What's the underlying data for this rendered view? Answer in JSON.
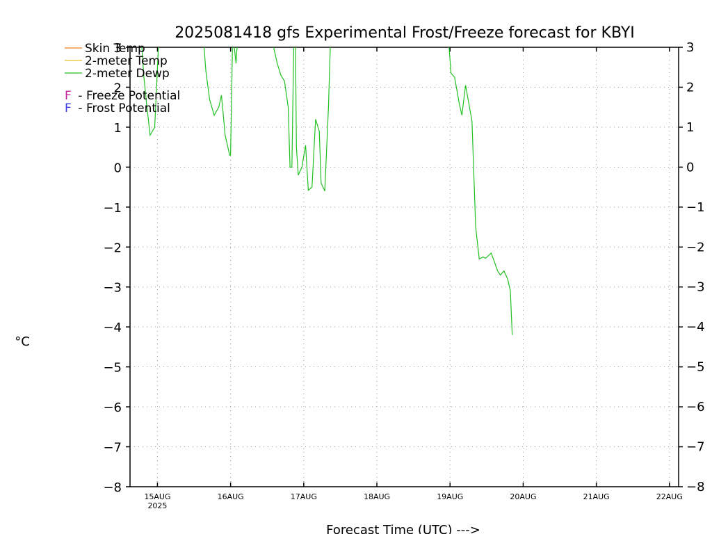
{
  "chart_data": {
    "type": "line",
    "title": "2025081418 gfs Experimental Frost/Freeze forecast for KBYI",
    "xlabel": "Forecast Time (UTC) --->",
    "ylabel": "°C",
    "ylim": [
      -8,
      3
    ],
    "y_ticks": [
      3,
      2,
      1,
      0,
      -1,
      -2,
      -3,
      -4,
      -5,
      -6,
      -7,
      -8
    ],
    "y_tick_labels": [
      "3",
      "2",
      "1",
      "0",
      "−1",
      "−2",
      "−3",
      "−4",
      "−5",
      "−6",
      "−7",
      "−8"
    ],
    "x_range_hours": [
      -3,
      177
    ],
    "x_tick_labels": [
      {
        "label": "15AUG",
        "sub": "2025",
        "hour": 6
      },
      {
        "label": "16AUG",
        "hour": 30
      },
      {
        "label": "17AUG",
        "hour": 54
      },
      {
        "label": "18AUG",
        "hour": 78
      },
      {
        "label": "19AUG",
        "hour": 102
      },
      {
        "label": "20AUG",
        "hour": 126
      },
      {
        "label": "21AUG",
        "hour": 150
      },
      {
        "label": "22AUG",
        "hour": 174
      }
    ],
    "grid": true,
    "legend": [
      {
        "marker": "",
        "label": "Skin Temp",
        "color": "#f08020"
      },
      {
        "marker": "",
        "label": "2-meter Temp",
        "color": "#e8c020"
      },
      {
        "marker": "",
        "label": "2-meter Dewp",
        "color": "#20c020"
      },
      {
        "marker": "F",
        "label": " - Freeze Potential",
        "color": "#c020a0"
      },
      {
        "marker": "F",
        "label": " - Frost Potential",
        "color": "#4040e0"
      }
    ],
    "series": [
      {
        "name": "2-meter Dewp",
        "color": "#20c020",
        "segments": [
          [
            [
              0.9,
              3.0
            ],
            [
              1.5,
              2.3
            ],
            [
              2.4,
              1.6
            ],
            [
              3.6,
              0.8
            ],
            [
              5.1,
              1.0
            ],
            [
              6.3,
              3.0
            ]
          ],
          [
            [
              21.3,
              3.0
            ],
            [
              21.9,
              2.4
            ],
            [
              23.1,
              1.7
            ],
            [
              24.6,
              1.3
            ],
            [
              26.1,
              1.5
            ],
            [
              27.0,
              1.8
            ],
            [
              28.2,
              0.8
            ],
            [
              29.7,
              0.3
            ],
            [
              30.0,
              0.3
            ],
            [
              30.6,
              3.0
            ]
          ],
          [
            [
              31.2,
              3.0
            ],
            [
              31.8,
              2.6
            ],
            [
              32.1,
              3.0
            ]
          ],
          [
            [
              44.1,
              3.0
            ],
            [
              45.3,
              2.6
            ],
            [
              46.5,
              2.3
            ],
            [
              47.7,
              2.15
            ],
            [
              48.9,
              1.5
            ],
            [
              49.5,
              0.0
            ],
            [
              50.1,
              0.0
            ],
            [
              50.7,
              3.0
            ]
          ],
          [
            [
              51.3,
              3.0
            ],
            [
              51.6,
              0.5
            ],
            [
              52.2,
              -0.2
            ],
            [
              53.4,
              0.0
            ],
            [
              54.6,
              0.55
            ],
            [
              55.5,
              -0.58
            ],
            [
              56.7,
              -0.5
            ],
            [
              57.9,
              1.2
            ],
            [
              59.1,
              0.9
            ],
            [
              59.7,
              -0.4
            ],
            [
              60.9,
              -0.6
            ],
            [
              62.1,
              1.5
            ],
            [
              62.7,
              3.0
            ]
          ],
          [
            [
              101.7,
              3.0
            ],
            [
              102.3,
              2.35
            ],
            [
              103.5,
              2.25
            ],
            [
              105.0,
              1.6
            ],
            [
              105.9,
              1.3
            ],
            [
              107.1,
              2.05
            ],
            [
              109.2,
              1.15
            ],
            [
              110.4,
              -1.5
            ],
            [
              111.6,
              -2.3
            ],
            [
              112.8,
              -2.25
            ],
            [
              113.7,
              -2.28
            ],
            [
              115.5,
              -2.15
            ],
            [
              116.7,
              -2.4
            ],
            [
              117.6,
              -2.6
            ],
            [
              118.5,
              -2.7
            ],
            [
              119.7,
              -2.6
            ],
            [
              120.9,
              -2.8
            ],
            [
              121.8,
              -3.1
            ],
            [
              122.4,
              -4.2
            ]
          ]
        ]
      }
    ]
  }
}
